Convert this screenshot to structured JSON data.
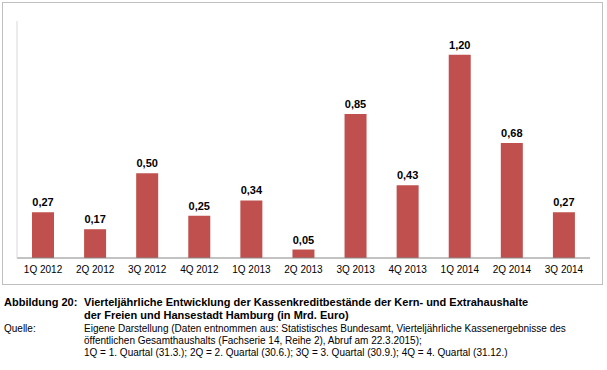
{
  "chart_data": {
    "type": "bar",
    "figure_label": "Abbildung 20:",
    "title": "Vierteljährliche Entwicklung der Kassenkreditbestände der Kern- und Extrahaushalte der Freien und Hansestadt Hamburg (in Mrd. Euro)",
    "source_label": "Quelle:",
    "source": "Eigene Darstellung (Daten entnommen aus: Statistisches Bundesamt, Vierteljährliche Kassenergebnisse des öffentlichen Gesamthaushalts (Fachserie 14, Reihe 2), Abruf am 22.3.2015);",
    "note": "1Q = 1. Quartal (31.3.);  2Q = 2. Quartal (30.6.);  3Q = 3. Quartal (30.9.);  4Q = 4. Quartal (31.12.)",
    "categories": [
      "1Q 2012",
      "2Q 2012",
      "3Q 2012",
      "4Q 2012",
      "1Q 2013",
      "2Q 2013",
      "3Q 2013",
      "4Q 2013",
      "1Q 2014",
      "2Q 2014",
      "3Q 2014"
    ],
    "values": [
      0.27,
      0.17,
      0.5,
      0.25,
      0.34,
      0.05,
      0.85,
      0.43,
      1.2,
      0.68,
      0.27
    ],
    "value_labels": [
      "0,27",
      "0,17",
      "0,50",
      "0,25",
      "0,34",
      "0,05",
      "0,85",
      "0,43",
      "1,20",
      "0,68",
      "0,27"
    ],
    "color": "#c0504d",
    "ylim": [
      0,
      1.4
    ],
    "data_labels": true,
    "tick_labels": "x",
    "grid": false
  }
}
